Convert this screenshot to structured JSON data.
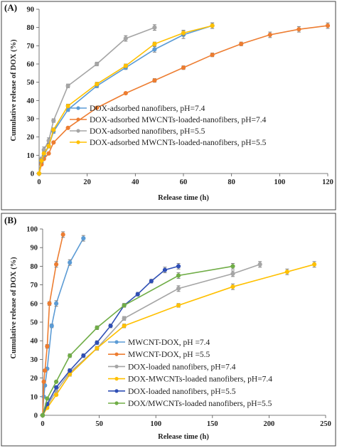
{
  "chart_data": [
    {
      "panel": "(A)",
      "type": "line",
      "xlabel": "Release time (h)",
      "ylabel": "Cumulative release of DOX (%)",
      "xlim": [
        0,
        120
      ],
      "ylim": [
        0,
        90
      ],
      "xticks": [
        0,
        20,
        40,
        60,
        80,
        100,
        120
      ],
      "yticks": [
        0,
        10,
        20,
        30,
        40,
        50,
        60,
        70,
        80,
        90
      ],
      "legend_position": "lower-center",
      "grid": false,
      "series": [
        {
          "name": "DOX-adsorbed nanofibers, pH=7.4",
          "color": "#5b9bd5",
          "x": [
            0,
            1,
            2,
            4,
            6,
            12,
            24,
            36,
            48,
            60,
            72
          ],
          "y": [
            0,
            6,
            10,
            15,
            23,
            35,
            48,
            58,
            68,
            76,
            81
          ],
          "err": [
            0,
            1,
            1,
            1,
            1,
            1,
            1,
            1,
            1.5,
            2,
            1.5
          ]
        },
        {
          "name": "DOX-adsorbed MWCNTs-loaded-nanofibers, pH=7.4",
          "color": "#ed7d31",
          "x": [
            0,
            1,
            2,
            4,
            6,
            12,
            24,
            36,
            48,
            60,
            72,
            84,
            96,
            108,
            120
          ],
          "y": [
            0,
            5,
            8,
            11,
            17,
            25,
            36,
            44,
            51,
            58,
            65,
            71,
            76,
            79,
            81
          ],
          "err": [
            0,
            0.5,
            0.5,
            0.5,
            0.5,
            0.5,
            0.5,
            0.5,
            1,
            1,
            1,
            1,
            1.5,
            1.5,
            1.5
          ]
        },
        {
          "name": "DOX-adsorbed nanofibers, pH=5.5",
          "color": "#a5a5a5",
          "x": [
            0,
            1,
            2,
            4,
            6,
            12,
            24,
            36,
            48
          ],
          "y": [
            0,
            8,
            13,
            18,
            29,
            48,
            60,
            74,
            80
          ],
          "err": [
            0,
            1,
            1.5,
            1.5,
            1,
            1,
            1,
            1.5,
            1.5
          ]
        },
        {
          "name": "DOX-adsorbed MWCNTs-loaded-nanofibers, pH=5.5",
          "color": "#ffc000",
          "x": [
            0,
            1,
            2,
            4,
            6,
            12,
            24,
            36,
            48,
            60,
            72
          ],
          "y": [
            0,
            7,
            11,
            15,
            24,
            37,
            49,
            59,
            71,
            77,
            81
          ],
          "err": [
            0,
            1,
            1,
            1,
            1,
            1,
            1,
            1,
            1,
            1.5,
            1.5
          ]
        }
      ]
    },
    {
      "panel": "(B)",
      "type": "line",
      "xlabel": "Release time (h)",
      "ylabel": "Cumulative release of DOX (%)",
      "xlim": [
        0,
        250
      ],
      "ylim": [
        0,
        100
      ],
      "xticks": [
        0,
        50,
        100,
        150,
        200,
        250
      ],
      "yticks": [
        0,
        10,
        20,
        30,
        40,
        50,
        60,
        70,
        80,
        90,
        100
      ],
      "legend_position": "lower-left",
      "grid": false,
      "series": [
        {
          "name": "MWCNT-DOX, pH =7.4",
          "color": "#5b9bd5",
          "x": [
            0,
            1,
            2,
            4,
            8,
            12,
            24,
            36
          ],
          "y": [
            0,
            10,
            16,
            25,
            48,
            60,
            82,
            95
          ],
          "err": [
            0,
            0.5,
            0.5,
            0.5,
            1,
            1.5,
            1.5,
            1.5
          ]
        },
        {
          "name": "MWCNT-DOX, pH =5.5",
          "color": "#ed7d31",
          "x": [
            0,
            1,
            2,
            4,
            6,
            12,
            18
          ],
          "y": [
            0,
            18,
            24,
            37,
            60,
            81,
            97
          ],
          "err": [
            0,
            0.5,
            0.5,
            1,
            1,
            1.5,
            1.5
          ]
        },
        {
          "name": "DOX-loaded nanofibers, pH=7.4",
          "color": "#a5a5a5",
          "x": [
            0,
            4,
            12,
            24,
            48,
            72,
            120,
            168,
            192
          ],
          "y": [
            0,
            5,
            13,
            23,
            36,
            52,
            68,
            76,
            81
          ],
          "err": [
            0,
            0.5,
            0.5,
            1,
            1,
            1,
            1.5,
            1.5,
            1.5
          ]
        },
        {
          "name": "DOX-MWCNTs-loaded nanofibers, pH=7.4",
          "color": "#ffc000",
          "x": [
            0,
            4,
            12,
            24,
            48,
            72,
            120,
            168,
            216,
            240
          ],
          "y": [
            0,
            4,
            11,
            22,
            36,
            48,
            59,
            69,
            77,
            81
          ],
          "err": [
            0,
            0.5,
            0.5,
            1,
            1,
            1,
            1,
            1.5,
            1.5,
            1.5
          ]
        },
        {
          "name": "DOX-loaded nanofibers, pH=5.5",
          "color": "#2f4fb5",
          "x": [
            0,
            4,
            12,
            24,
            36,
            48,
            60,
            72,
            84,
            96,
            108,
            120
          ],
          "y": [
            0,
            6,
            15,
            24,
            32,
            39,
            48,
            59,
            65,
            72,
            78,
            80
          ],
          "err": [
            0,
            0.5,
            0.5,
            1,
            1,
            1,
            1,
            1,
            1,
            1,
            1.5,
            1.5
          ]
        },
        {
          "name": "DOX/MWCNTs-loaded nanofibers, pH=5.5",
          "color": "#70ad47",
          "x": [
            0,
            4,
            12,
            24,
            48,
            72,
            120,
            168
          ],
          "y": [
            0,
            9,
            18,
            32,
            47,
            59,
            75,
            80
          ],
          "err": [
            0,
            0.5,
            0.5,
            1,
            1,
            1,
            1.5,
            1.5
          ]
        }
      ]
    }
  ]
}
